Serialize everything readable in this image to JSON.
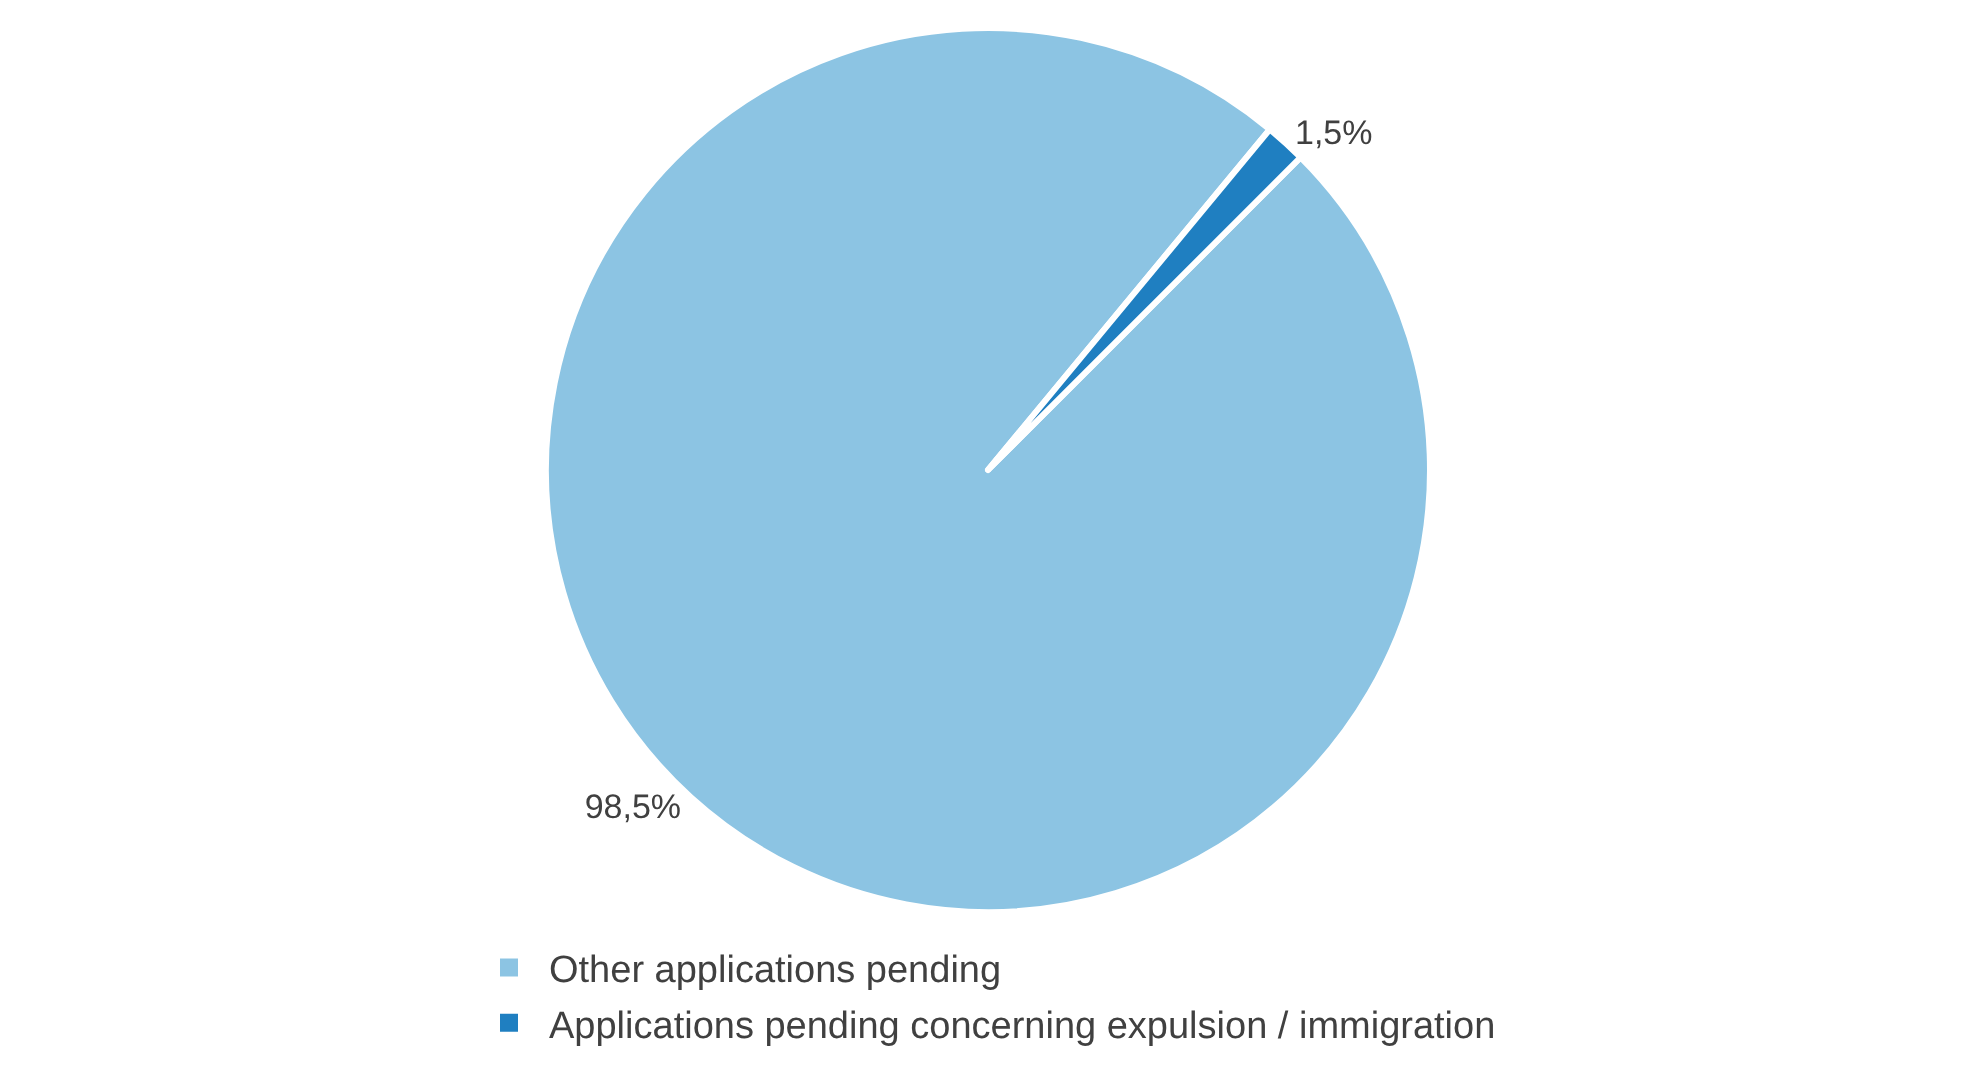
{
  "chart_data": {
    "type": "pie",
    "categories": [
      "Other applications pending",
      "Applications pending concerning expulsion / immigration"
    ],
    "values": [
      98.5,
      1.5
    ],
    "colors": [
      "#8cc4e3",
      "#1f7fc1"
    ],
    "value_labels": [
      "98,5%",
      "1,5%"
    ],
    "legend": "bottom"
  }
}
